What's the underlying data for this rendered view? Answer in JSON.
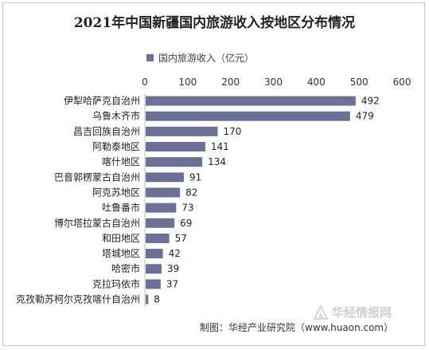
{
  "title": "2021年中国新疆国内旅游收入按地区分布情况",
  "legend": {
    "label": "国内旅游收入（亿元）",
    "color": "#6b7196"
  },
  "source": "制图：华经产业研究院（www.huaon.com）",
  "watermark": {
    "text": "华经情报网"
  },
  "chart_data": {
    "type": "bar",
    "orientation": "horizontal",
    "title": "2021年中国新疆国内旅游收入按地区分布情况",
    "xlim": [
      0,
      600
    ],
    "xticks": [
      0,
      100,
      200,
      300,
      400,
      500,
      600
    ],
    "xaxis_position": "top",
    "grid": false,
    "legend_position": "top",
    "categories": [
      "伊犁哈萨克自治州",
      "乌鲁木齐市",
      "昌吉回族自治州",
      "阿勒泰地区",
      "喀什地区",
      "巴音郭楞蒙古自治州",
      "阿克苏地区",
      "吐鲁番市",
      "博尔塔拉蒙古自治州",
      "和田地区",
      "塔城地区",
      "哈密市",
      "克拉玛依市",
      "克孜勒苏柯尔克孜喀什自治州"
    ],
    "series": [
      {
        "name": "国内旅游收入（亿元）",
        "values": [
          492,
          479,
          170,
          141,
          134,
          91,
          82,
          73,
          69,
          57,
          42,
          39,
          37,
          8
        ],
        "color": "#6b7196"
      }
    ]
  }
}
